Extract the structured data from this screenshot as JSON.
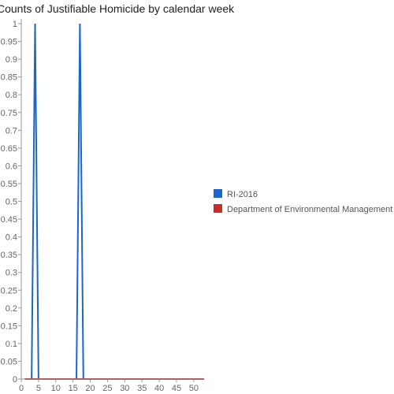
{
  "chart_data": {
    "type": "line",
    "title": "Counts of Justifiable Homicide by calendar week",
    "xlabel": "",
    "ylabel": "",
    "xlim": [
      0,
      53
    ],
    "ylim": [
      0,
      1
    ],
    "x_ticks": [
      0,
      5,
      10,
      15,
      20,
      25,
      30,
      35,
      40,
      45,
      50
    ],
    "y_ticks": [
      0,
      0.05,
      0.1,
      0.15,
      0.2,
      0.25,
      0.3,
      0.35,
      0.4,
      0.45,
      0.5,
      0.55,
      0.6,
      0.65,
      0.7,
      0.75,
      0.8,
      0.85,
      0.9,
      0.95,
      1
    ],
    "x": [
      1,
      2,
      3,
      4,
      5,
      6,
      7,
      8,
      9,
      10,
      11,
      12,
      13,
      14,
      15,
      16,
      17,
      18,
      19,
      20,
      21,
      22,
      23,
      24,
      25,
      26,
      27,
      28,
      29,
      30,
      31,
      32,
      33,
      34,
      35,
      36,
      37,
      38,
      39,
      40,
      41,
      42,
      43,
      44,
      45,
      46,
      47,
      48,
      49,
      50,
      51,
      52,
      53
    ],
    "series": [
      {
        "name": "RI-2016",
        "color": "#1a66cc",
        "values": [
          0,
          0,
          0,
          1,
          0,
          0,
          0,
          0,
          0,
          0,
          0,
          0,
          0,
          0,
          0,
          0,
          1,
          0,
          0,
          0,
          0,
          0,
          0,
          0,
          0,
          0,
          0,
          0,
          0,
          0,
          0,
          0,
          0,
          0,
          0,
          0,
          0,
          0,
          0,
          0,
          0,
          0,
          0,
          0,
          0,
          0,
          0,
          0,
          0,
          0,
          0,
          0,
          0
        ]
      },
      {
        "name": "Department of Environmental Management",
        "color": "#cc2929",
        "values": [
          0,
          0,
          0,
          0,
          0,
          0,
          0,
          0,
          0,
          0,
          0,
          0,
          0,
          0,
          0,
          0,
          0,
          0,
          0,
          0,
          0,
          0,
          0,
          0,
          0,
          0,
          0,
          0,
          0,
          0,
          0,
          0,
          0,
          0,
          0,
          0,
          0,
          0,
          0,
          0,
          0,
          0,
          0,
          0,
          0,
          0,
          0,
          0,
          0,
          0,
          0,
          0,
          0
        ]
      }
    ],
    "legend_position": "right",
    "grid": false
  }
}
